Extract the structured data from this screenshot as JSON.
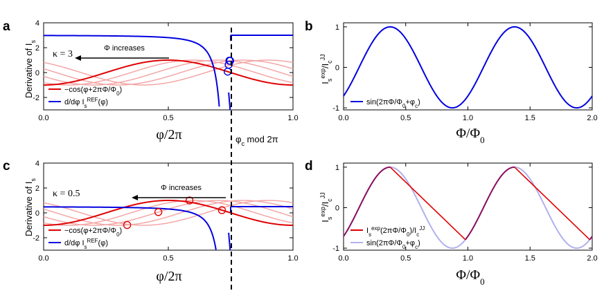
{
  "panel_letters": [
    "a",
    "b",
    "c",
    "d"
  ],
  "phi_c_label": "φc  mod 2π",
  "chart_data": [
    {
      "id": "a",
      "type": "line",
      "ylabel": "Derivative of I_s",
      "xlabel": "φ/2π",
      "xlim": [
        0,
        1
      ],
      "ylim": [
        -3,
        4
      ],
      "xticks": [
        "0.0",
        "0.5",
        "1.0"
      ],
      "yticks": [
        "-2",
        "0",
        "2",
        "4"
      ],
      "kappa_label": "κ = 3",
      "arrow_label": "Φ increases",
      "legend": [
        "−cos(φ+2πΦ/Φ0)",
        "d/dφ Is^REF(φ)"
      ],
      "series": [
        {
          "name": "−cos(φ+2πΦ/Φ0)",
          "function": "-cos(2π(x + s))",
          "shifts": [
            0.0
          ],
          "color": "#e00000"
        },
        {
          "function": "-cos(2π(x + s))",
          "shifts": [
            -0.1,
            -0.2,
            -0.3,
            -0.4
          ],
          "color": "#f4a6a6"
        },
        {
          "name": "d/dφ Is^REF(φ)",
          "kappa": 3,
          "phi_c_over_2pi": 0.75,
          "color": "#0000e0"
        }
      ],
      "markers_x": [
        0.738,
        0.742,
        0.745,
        0.748
      ],
      "marker_color": "#0000e0"
    },
    {
      "id": "b",
      "type": "line",
      "ylabel": "Is^exp/Ic^JJ",
      "xlabel": "Φ/Φ0",
      "xlim": [
        0,
        2
      ],
      "ylim": [
        -1.05,
        1.1
      ],
      "xticks": [
        "0.0",
        "0.5",
        "1.0",
        "1.5",
        "2.0"
      ],
      "yticks": [
        "-1",
        "0",
        "1"
      ],
      "legend": [
        "sin(2πΦ/Φ0+φc)"
      ],
      "series": [
        {
          "name": "sin(2πΦ/Φ0+φc)",
          "function": "sin(2π(x - 0.125))",
          "color": "#0000e0"
        }
      ]
    },
    {
      "id": "c",
      "type": "line",
      "ylabel": "Derivative of I_s",
      "xlabel": "φ/2π",
      "xlim": [
        0,
        1
      ],
      "ylim": [
        -3,
        4
      ],
      "xticks": [
        "0.0",
        "0.5",
        "1.0"
      ],
      "yticks": [
        "-2",
        "0",
        "2",
        "4"
      ],
      "kappa_label": "κ = 0.5",
      "arrow_label": "Φ increases",
      "legend": [
        "−cos(φ+2πΦ/Φ0)",
        "d/dφ Is^REF(φ)"
      ],
      "series": [
        {
          "name": "−cos(φ+2πΦ/Φ0)",
          "function": "-cos(2π(x + s))",
          "shifts": [
            0.0
          ],
          "color": "#e00000"
        },
        {
          "function": "-cos(2π(x + s))",
          "shifts": [
            -0.1,
            -0.2,
            -0.3,
            -0.4
          ],
          "color": "#f4a6a6"
        },
        {
          "name": "d/dφ Is^REF(φ)",
          "kappa": 0.5,
          "phi_c_over_2pi": 0.75,
          "color": "#0000e0"
        }
      ],
      "markers_x": [
        0.335,
        0.46,
        0.585,
        0.715
      ],
      "marker_color": "#e00000"
    },
    {
      "id": "d",
      "type": "line",
      "ylabel": "Is^exp/Ic^JJ",
      "xlabel": "Φ/Φ0",
      "xlim": [
        0,
        2
      ],
      "ylim": [
        -1.05,
        1.1
      ],
      "xticks": [
        "0.0",
        "0.5",
        "1.0",
        "1.5",
        "2.0"
      ],
      "yticks": [
        "-1",
        "0",
        "1"
      ],
      "legend": [
        "Is^exp(2πΦ/Φ0)/Ic^JJ",
        "sin(2πΦ/Φ0+φc)"
      ],
      "series": [
        {
          "name": "Is^exp(2πΦ/Φ0)/Ic^JJ",
          "color": "#e00000",
          "linear_start_x": [
            0.375,
            1.375
          ],
          "linear_end_x": [
            0.98,
            1.98
          ]
        },
        {
          "name": "sin(2πΦ/Φ0+φc)",
          "function": "sin(2π(x - 0.125))",
          "color": "#b0b0ee"
        },
        {
          "name": "overlap",
          "color": "#8a1060"
        }
      ]
    }
  ]
}
